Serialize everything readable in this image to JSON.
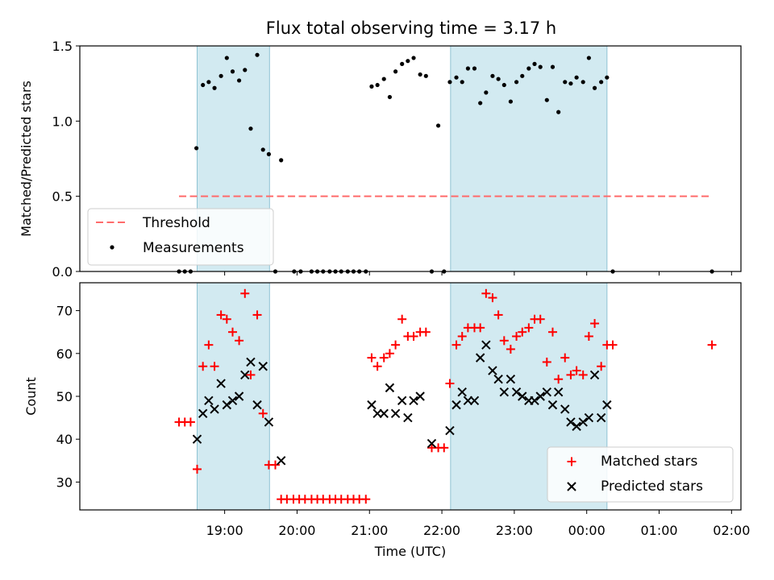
{
  "chart_data": {
    "title": "Flux total observing time = 3.17 h",
    "xlabel": "Time (UTC)",
    "x_unit": "hours since 18:00 UTC",
    "xlim": [
      17.0,
      26.13
    ],
    "x_ticks": [
      {
        "value": 19,
        "label": "19:00"
      },
      {
        "value": 20,
        "label": "20:00"
      },
      {
        "value": 21,
        "label": "21:00"
      },
      {
        "value": 22,
        "label": "22:00"
      },
      {
        "value": 23,
        "label": "23:00"
      },
      {
        "value": 24,
        "label": "00:00"
      },
      {
        "value": 25,
        "label": "01:00"
      },
      {
        "value": 26,
        "label": "02:00"
      }
    ],
    "observing_windows": [
      [
        18.62,
        19.62
      ],
      [
        22.12,
        24.28
      ]
    ],
    "colors": {
      "window": "#add8e6",
      "threshold": "#ff6b6b",
      "measurement": "#000000",
      "matched": "#ff0000",
      "predicted": "#000000"
    },
    "top_panel": {
      "type": "scatter",
      "ylabel": "Matched/Predicted stars",
      "ylim": [
        0,
        1.5
      ],
      "y_ticks": [
        {
          "value": 0,
          "label": "0.0"
        },
        {
          "value": 0.5,
          "label": "0.5"
        },
        {
          "value": 1.0,
          "label": "1.0"
        },
        {
          "value": 1.5,
          "label": "1.5"
        }
      ],
      "threshold": {
        "y": 0.5,
        "x_range": [
          18.37,
          25.73
        ],
        "label": "Threshold"
      },
      "legend": {
        "location": "lower-left",
        "entries": [
          "Threshold",
          "Measurements"
        ]
      },
      "series": [
        {
          "name": "Measurements",
          "x": [
            18.37,
            18.45,
            18.53,
            18.61,
            18.7,
            18.78,
            18.86,
            18.95,
            19.03,
            19.11,
            19.2,
            19.28,
            19.36,
            19.45,
            19.53,
            19.61,
            19.7,
            19.78,
            19.96,
            20.05,
            20.2,
            20.28,
            20.36,
            20.45,
            20.53,
            20.61,
            20.7,
            20.78,
            20.86,
            20.95,
            21.03,
            21.11,
            21.2,
            21.28,
            21.36,
            21.45,
            21.53,
            21.61,
            21.7,
            21.78,
            21.86,
            21.95,
            22.03,
            22.11,
            22.2,
            22.28,
            22.36,
            22.45,
            22.53,
            22.61,
            22.7,
            22.78,
            22.86,
            22.95,
            23.03,
            23.11,
            23.2,
            23.28,
            23.36,
            23.45,
            23.53,
            23.61,
            23.7,
            23.78,
            23.86,
            23.95,
            24.03,
            24.11,
            24.2,
            24.28,
            24.36,
            25.73
          ],
          "y": [
            0,
            0,
            0,
            0.82,
            1.24,
            1.26,
            1.22,
            1.3,
            1.42,
            1.33,
            1.27,
            1.34,
            0.95,
            1.44,
            0.81,
            0.78,
            0,
            0.74,
            0,
            0,
            0,
            0,
            0,
            0,
            0,
            0,
            0,
            0,
            0,
            0,
            1.23,
            1.24,
            1.28,
            1.16,
            1.33,
            1.38,
            1.4,
            1.42,
            1.31,
            1.3,
            0,
            0.97,
            0,
            1.26,
            1.29,
            1.26,
            1.35,
            1.35,
            1.12,
            1.19,
            1.3,
            1.28,
            1.24,
            1.13,
            1.26,
            1.3,
            1.35,
            1.38,
            1.36,
            1.14,
            1.36,
            1.06,
            1.26,
            1.25,
            1.29,
            1.26,
            1.42,
            1.22,
            1.26,
            1.29,
            0,
            0
          ]
        }
      ]
    },
    "bottom_panel": {
      "type": "scatter",
      "ylabel": "Count",
      "ylim": [
        23.5,
        76.5
      ],
      "y_ticks": [
        {
          "value": 30,
          "label": "30"
        },
        {
          "value": 40,
          "label": "40"
        },
        {
          "value": 50,
          "label": "50"
        },
        {
          "value": 60,
          "label": "60"
        },
        {
          "value": 70,
          "label": "70"
        }
      ],
      "legend": {
        "location": "lower-right",
        "entries": [
          "Matched stars",
          "Predicted stars"
        ]
      },
      "series": [
        {
          "name": "Matched stars",
          "marker": "+",
          "x": [
            18.37,
            18.45,
            18.53,
            18.62,
            18.7,
            18.78,
            18.86,
            18.95,
            19.03,
            19.11,
            19.2,
            19.28,
            19.36,
            19.45,
            19.53,
            19.61,
            19.7,
            19.78,
            19.86,
            19.95,
            20.03,
            20.11,
            20.2,
            20.28,
            20.36,
            20.45,
            20.53,
            20.61,
            20.7,
            20.78,
            20.86,
            20.95,
            21.03,
            21.11,
            21.2,
            21.28,
            21.36,
            21.45,
            21.53,
            21.61,
            21.7,
            21.78,
            21.86,
            21.95,
            22.03,
            22.11,
            22.2,
            22.28,
            22.36,
            22.45,
            22.53,
            22.61,
            22.7,
            22.78,
            22.86,
            22.95,
            23.03,
            23.11,
            23.2,
            23.28,
            23.36,
            23.45,
            23.53,
            23.61,
            23.7,
            23.78,
            23.86,
            23.95,
            24.03,
            24.11,
            24.2,
            24.28,
            24.36,
            25.73
          ],
          "y": [
            44,
            44,
            44,
            33,
            57,
            62,
            57,
            69,
            68,
            65,
            63,
            74,
            55,
            69,
            46,
            34,
            34,
            26,
            26,
            26,
            26,
            26,
            26,
            26,
            26,
            26,
            26,
            26,
            26,
            26,
            26,
            26,
            59,
            57,
            59,
            60,
            62,
            68,
            64,
            64,
            65,
            65,
            38,
            38,
            38,
            53,
            62,
            64,
            66,
            66,
            66,
            74,
            73,
            69,
            63,
            61,
            64,
            65,
            66,
            68,
            68,
            58,
            65,
            54,
            59,
            55,
            56,
            55,
            64,
            67,
            57,
            62,
            62,
            62
          ]
        },
        {
          "name": "Predicted stars",
          "marker": "x",
          "x": [
            18.62,
            18.7,
            18.78,
            18.86,
            18.95,
            19.03,
            19.11,
            19.2,
            19.28,
            19.36,
            19.45,
            19.53,
            19.61,
            19.78,
            21.03,
            21.11,
            21.2,
            21.28,
            21.36,
            21.45,
            21.53,
            21.61,
            21.7,
            21.86,
            22.11,
            22.2,
            22.28,
            22.36,
            22.45,
            22.53,
            22.61,
            22.7,
            22.78,
            22.86,
            22.95,
            23.03,
            23.11,
            23.2,
            23.28,
            23.36,
            23.45,
            23.53,
            23.61,
            23.7,
            23.78,
            23.86,
            23.95,
            24.03,
            24.11,
            24.2,
            24.28
          ],
          "y": [
            40,
            46,
            49,
            47,
            53,
            48,
            49,
            50,
            55,
            58,
            48,
            57,
            44,
            35,
            48,
            46,
            46,
            52,
            46,
            49,
            45,
            49,
            50,
            39,
            42,
            48,
            51,
            49,
            49,
            59,
            62,
            56,
            54,
            51,
            54,
            51,
            50,
            49,
            49,
            50,
            51,
            48,
            51,
            47,
            44,
            43,
            44,
            45,
            55,
            45,
            48
          ]
        }
      ]
    }
  }
}
